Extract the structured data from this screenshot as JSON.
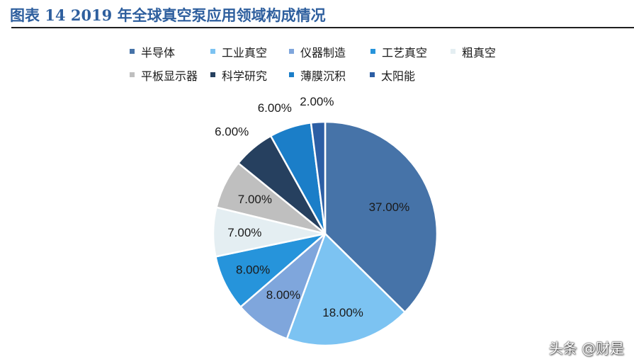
{
  "title": "图表 14 2019 年全球真空泵应用领域构成情况",
  "watermark": "头条 @财是",
  "chart_data": {
    "type": "pie",
    "title": "",
    "categories": [
      "半导体",
      "工业真空",
      "仪器制造",
      "工艺真空",
      "粗真空",
      "平板显示器",
      "科学研究",
      "薄膜沉积",
      "太阳能"
    ],
    "values": [
      37,
      18,
      8,
      8,
      7,
      7,
      6,
      6,
      2
    ],
    "value_labels": [
      "37.00%",
      "18.00%",
      "8.00%",
      "8.00%",
      "7.00%",
      "7.00%",
      "6.00%",
      "6.00%",
      "2.00%"
    ],
    "colors": [
      "#4673a8",
      "#7cc3f2",
      "#7fa6dc",
      "#2694db",
      "#e4eef2",
      "#bfbfbf",
      "#26405f",
      "#1b7ec8",
      "#2c5ea4"
    ],
    "legend_position": "top",
    "start": "12 o'clock",
    "direction": "clockwise"
  }
}
